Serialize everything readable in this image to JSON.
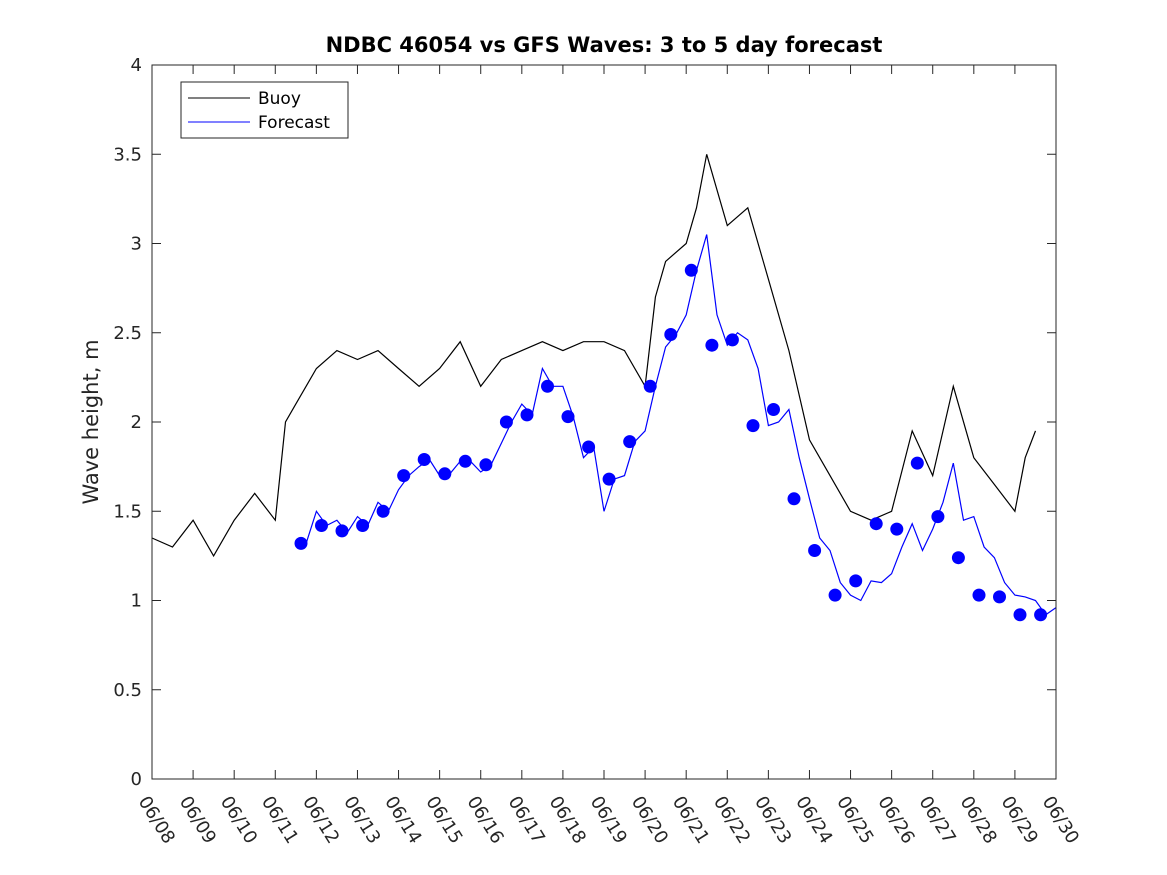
{
  "chart_data": {
    "type": "line",
    "title": "NDBC 46054 vs GFS Waves: 3 to 5 day forecast",
    "xlabel": "",
    "ylabel": "Wave height, m",
    "xlim": [
      "06/08",
      "06/30"
    ],
    "ylim": [
      0,
      4
    ],
    "x_ticks": [
      "06/08",
      "06/09",
      "06/10",
      "06/11",
      "06/12",
      "06/13",
      "06/14",
      "06/15",
      "06/16",
      "06/17",
      "06/18",
      "06/19",
      "06/20",
      "06/21",
      "06/22",
      "06/23",
      "06/24",
      "06/25",
      "06/26",
      "06/27",
      "06/28",
      "06/29",
      "06/30"
    ],
    "y_ticks": [
      "0",
      "0.5",
      "1",
      "1.5",
      "2",
      "2.5",
      "3",
      "3.5",
      "4"
    ],
    "grid": false,
    "legend_position": "top-left",
    "colors": {
      "buoy": "#000000",
      "forecast": "#0000ff"
    },
    "series": [
      {
        "name": "Buoy",
        "style": "line",
        "x": [
          "06/08",
          "06/08 12:00",
          "06/09",
          "06/09 12:00",
          "06/10",
          "06/10 12:00",
          "06/11",
          "06/11 06:00",
          "06/11 12:00",
          "06/12",
          "06/12 12:00",
          "06/13",
          "06/13 12:00",
          "06/14",
          "06/14 12:00",
          "06/15",
          "06/15 12:00",
          "06/16",
          "06/16 12:00",
          "06/17",
          "06/17 12:00",
          "06/18",
          "06/18 12:00",
          "06/19",
          "06/19 12:00",
          "06/20",
          "06/20 06:00",
          "06/20 12:00",
          "06/21",
          "06/21 06:00",
          "06/21 12:00",
          "06/22",
          "06/22 12:00",
          "06/23",
          "06/23 12:00",
          "06/24",
          "06/24 12:00",
          "06/25",
          "06/25 12:00",
          "06/26",
          "06/26 12:00",
          "06/27",
          "06/27 12:00",
          "06/28",
          "06/28 12:00",
          "06/29",
          "06/29 06:00",
          "06/29 12:00"
        ],
        "values": [
          1.35,
          1.3,
          1.45,
          1.25,
          1.45,
          1.6,
          1.45,
          2.0,
          2.1,
          2.3,
          2.4,
          2.35,
          2.4,
          2.3,
          2.2,
          2.3,
          2.45,
          2.2,
          2.35,
          2.4,
          2.45,
          2.4,
          2.45,
          2.45,
          2.4,
          2.2,
          2.7,
          2.9,
          3.0,
          3.2,
          3.5,
          3.1,
          3.2,
          2.8,
          2.4,
          1.9,
          1.7,
          1.5,
          1.45,
          1.5,
          1.95,
          1.7,
          2.2,
          1.8,
          1.65,
          1.5,
          1.8,
          1.95
        ]
      },
      {
        "name": "Forecast",
        "style": "line",
        "x": [
          "06/11 18:00",
          "06/12",
          "06/12 06:00",
          "06/12 12:00",
          "06/12 18:00",
          "06/13",
          "06/13 06:00",
          "06/13 12:00",
          "06/13 18:00",
          "06/14",
          "06/14 06:00",
          "06/14 12:00",
          "06/14 18:00",
          "06/15",
          "06/15 06:00",
          "06/15 12:00",
          "06/15 18:00",
          "06/16",
          "06/16 06:00",
          "06/16 12:00",
          "06/16 18:00",
          "06/17",
          "06/17 06:00",
          "06/17 12:00",
          "06/17 18:00",
          "06/18",
          "06/18 06:00",
          "06/18 12:00",
          "06/18 18:00",
          "06/19",
          "06/19 06:00",
          "06/19 12:00",
          "06/19 18:00",
          "06/20",
          "06/20 06:00",
          "06/20 12:00",
          "06/20 18:00",
          "06/21",
          "06/21 06:00",
          "06/21 12:00",
          "06/21 18:00",
          "06/22",
          "06/22 06:00",
          "06/22 12:00",
          "06/22 18:00",
          "06/23",
          "06/23 06:00",
          "06/23 12:00",
          "06/23 18:00",
          "06/24",
          "06/24 06:00",
          "06/24 12:00",
          "06/24 18:00",
          "06/25",
          "06/25 06:00",
          "06/25 12:00",
          "06/25 18:00",
          "06/26",
          "06/26 06:00",
          "06/26 12:00",
          "06/26 18:00",
          "06/27",
          "06/27 06:00",
          "06/27 12:00",
          "06/27 18:00",
          "06/28",
          "06/28 06:00",
          "06/28 12:00",
          "06/28 18:00",
          "06/29",
          "06/29 06:00",
          "06/29 12:00",
          "06/29 18:00",
          "06/30"
        ],
        "values": [
          1.32,
          1.5,
          1.42,
          1.45,
          1.38,
          1.47,
          1.42,
          1.55,
          1.5,
          1.62,
          1.7,
          1.75,
          1.79,
          1.7,
          1.71,
          1.78,
          1.78,
          1.72,
          1.76,
          1.88,
          2.0,
          2.1,
          2.04,
          2.3,
          2.2,
          2.2,
          2.03,
          1.8,
          1.86,
          1.5,
          1.68,
          1.7,
          1.89,
          1.95,
          2.2,
          2.42,
          2.49,
          2.6,
          2.85,
          3.05,
          2.6,
          2.43,
          2.5,
          2.46,
          2.3,
          1.98,
          2.0,
          2.07,
          1.8,
          1.57,
          1.35,
          1.28,
          1.1,
          1.03,
          1.0,
          1.11,
          1.1,
          1.15,
          1.3,
          1.43,
          1.28,
          1.4,
          1.55,
          1.77,
          1.45,
          1.47,
          1.3,
          1.24,
          1.1,
          1.03,
          1.02,
          1.0,
          0.92,
          0.96
        ]
      },
      {
        "name": "",
        "style": "markers",
        "x": [
          "06/11 15:00",
          "06/12 03:00",
          "06/12 15:00",
          "06/13 03:00",
          "06/13 15:00",
          "06/14 03:00",
          "06/14 15:00",
          "06/15 03:00",
          "06/15 15:00",
          "06/16 03:00",
          "06/16 15:00",
          "06/17 03:00",
          "06/17 15:00",
          "06/18 03:00",
          "06/18 15:00",
          "06/19 03:00",
          "06/19 15:00",
          "06/20 03:00",
          "06/20 15:00",
          "06/21 03:00",
          "06/21 15:00",
          "06/22 03:00",
          "06/22 15:00",
          "06/23 03:00",
          "06/23 15:00",
          "06/24 03:00",
          "06/24 15:00",
          "06/25 03:00",
          "06/25 15:00",
          "06/26 03:00",
          "06/26 15:00",
          "06/27 03:00",
          "06/27 15:00",
          "06/28 03:00",
          "06/28 15:00",
          "06/29 03:00",
          "06/29 15:00"
        ],
        "values": [
          1.32,
          1.42,
          1.39,
          1.42,
          1.5,
          1.7,
          1.79,
          1.71,
          1.78,
          1.76,
          2.0,
          2.04,
          2.2,
          2.03,
          1.86,
          1.68,
          1.89,
          2.2,
          2.49,
          2.85,
          2.43,
          2.46,
          1.98,
          2.07,
          1.57,
          1.28,
          1.03,
          1.11,
          1.43,
          1.4,
          1.77,
          1.47,
          1.24,
          1.03,
          1.02,
          0.92,
          0.92
        ]
      }
    ]
  }
}
